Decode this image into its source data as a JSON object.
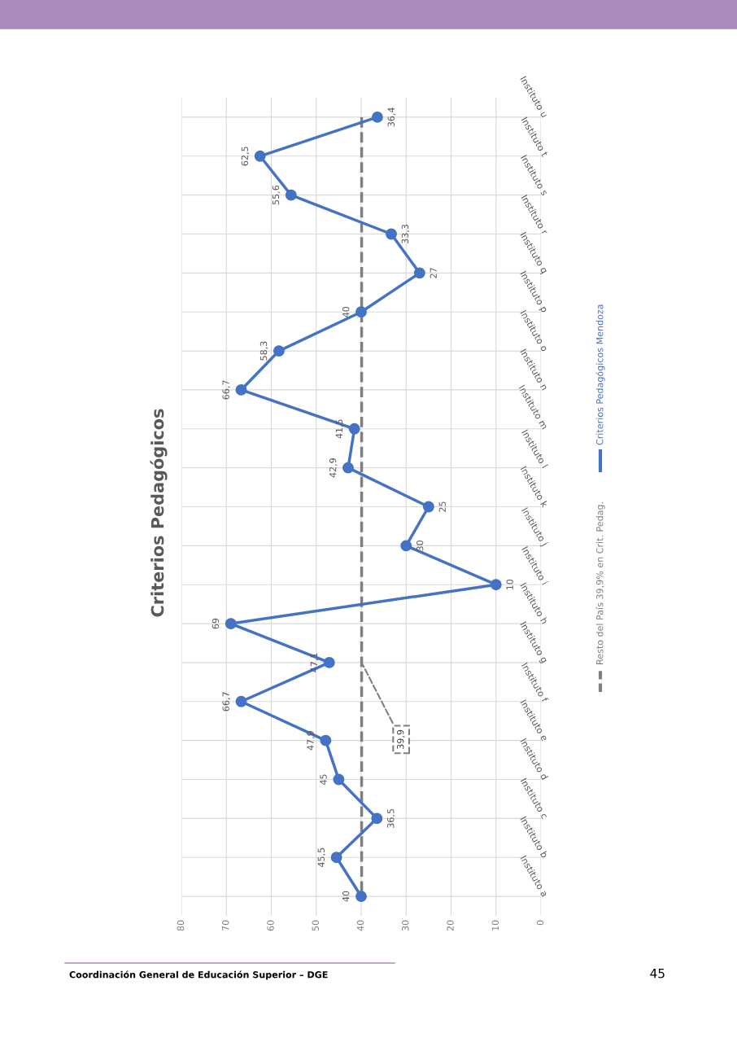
{
  "chart_data": {
    "type": "line",
    "title": "Criterios Pedagógicos",
    "orientation": "horizontal",
    "categories": [
      "Instituto u",
      "Instituto t",
      "Instituto s",
      "Instituto r",
      "Instituto q",
      "Instituto p",
      "Instituto o",
      "Instituto n",
      "Instituto m",
      "Instituto l",
      "Instituto k",
      "Instituto j",
      "Instituto i",
      "Instituto h",
      "Instituto g",
      "Instituto f",
      "Instituto e",
      "Instituto d",
      "Instituto c",
      "Instituto b",
      "Instituto a"
    ],
    "series": [
      {
        "name": "Resto del País 39,9% en Crit. Pedag.",
        "color": "#7f7f7f",
        "line_style": "dashed",
        "marker": "none",
        "values": [
          39.9,
          39.9,
          39.9,
          39.9,
          39.9,
          39.9,
          39.9,
          39.9,
          39.9,
          39.9,
          39.9,
          39.9,
          39.9,
          39.9,
          39.9,
          39.9,
          39.9,
          39.9,
          39.9,
          39.9,
          39.9
        ],
        "value_labels": [
          null,
          null,
          null,
          null,
          null,
          null,
          null,
          null,
          null,
          null,
          null,
          null,
          null,
          null,
          "39,9",
          null,
          null,
          null,
          null,
          null,
          null
        ]
      },
      {
        "name": "Criterios Pedagógicos Mendoza",
        "color": "#4472c4",
        "line_style": "solid",
        "marker": "circle",
        "values": [
          36.4,
          62.5,
          55.6,
          33.3,
          27,
          40,
          58.3,
          66.7,
          41.5,
          42.9,
          25,
          30,
          10,
          69,
          47.1,
          66.7,
          47.9,
          45,
          36.5,
          45.5,
          40
        ],
        "value_labels": [
          "36,4",
          "62,5",
          "55,6",
          "33,3",
          "27",
          "40",
          "58,3",
          "66,7",
          "41,5",
          "42,9",
          "25",
          "30",
          "10",
          "69",
          "47,1",
          "66,7",
          "47,9",
          "45",
          "36,5",
          "45,5",
          "40"
        ]
      }
    ],
    "xlim": [
      80,
      0
    ],
    "xticks": [
      80,
      70,
      60,
      50,
      40,
      30,
      20,
      10,
      0
    ],
    "grid": true,
    "legend": "right",
    "annotations": [
      "Coordinación General de Educación Superior – DGE",
      "45"
    ]
  }
}
